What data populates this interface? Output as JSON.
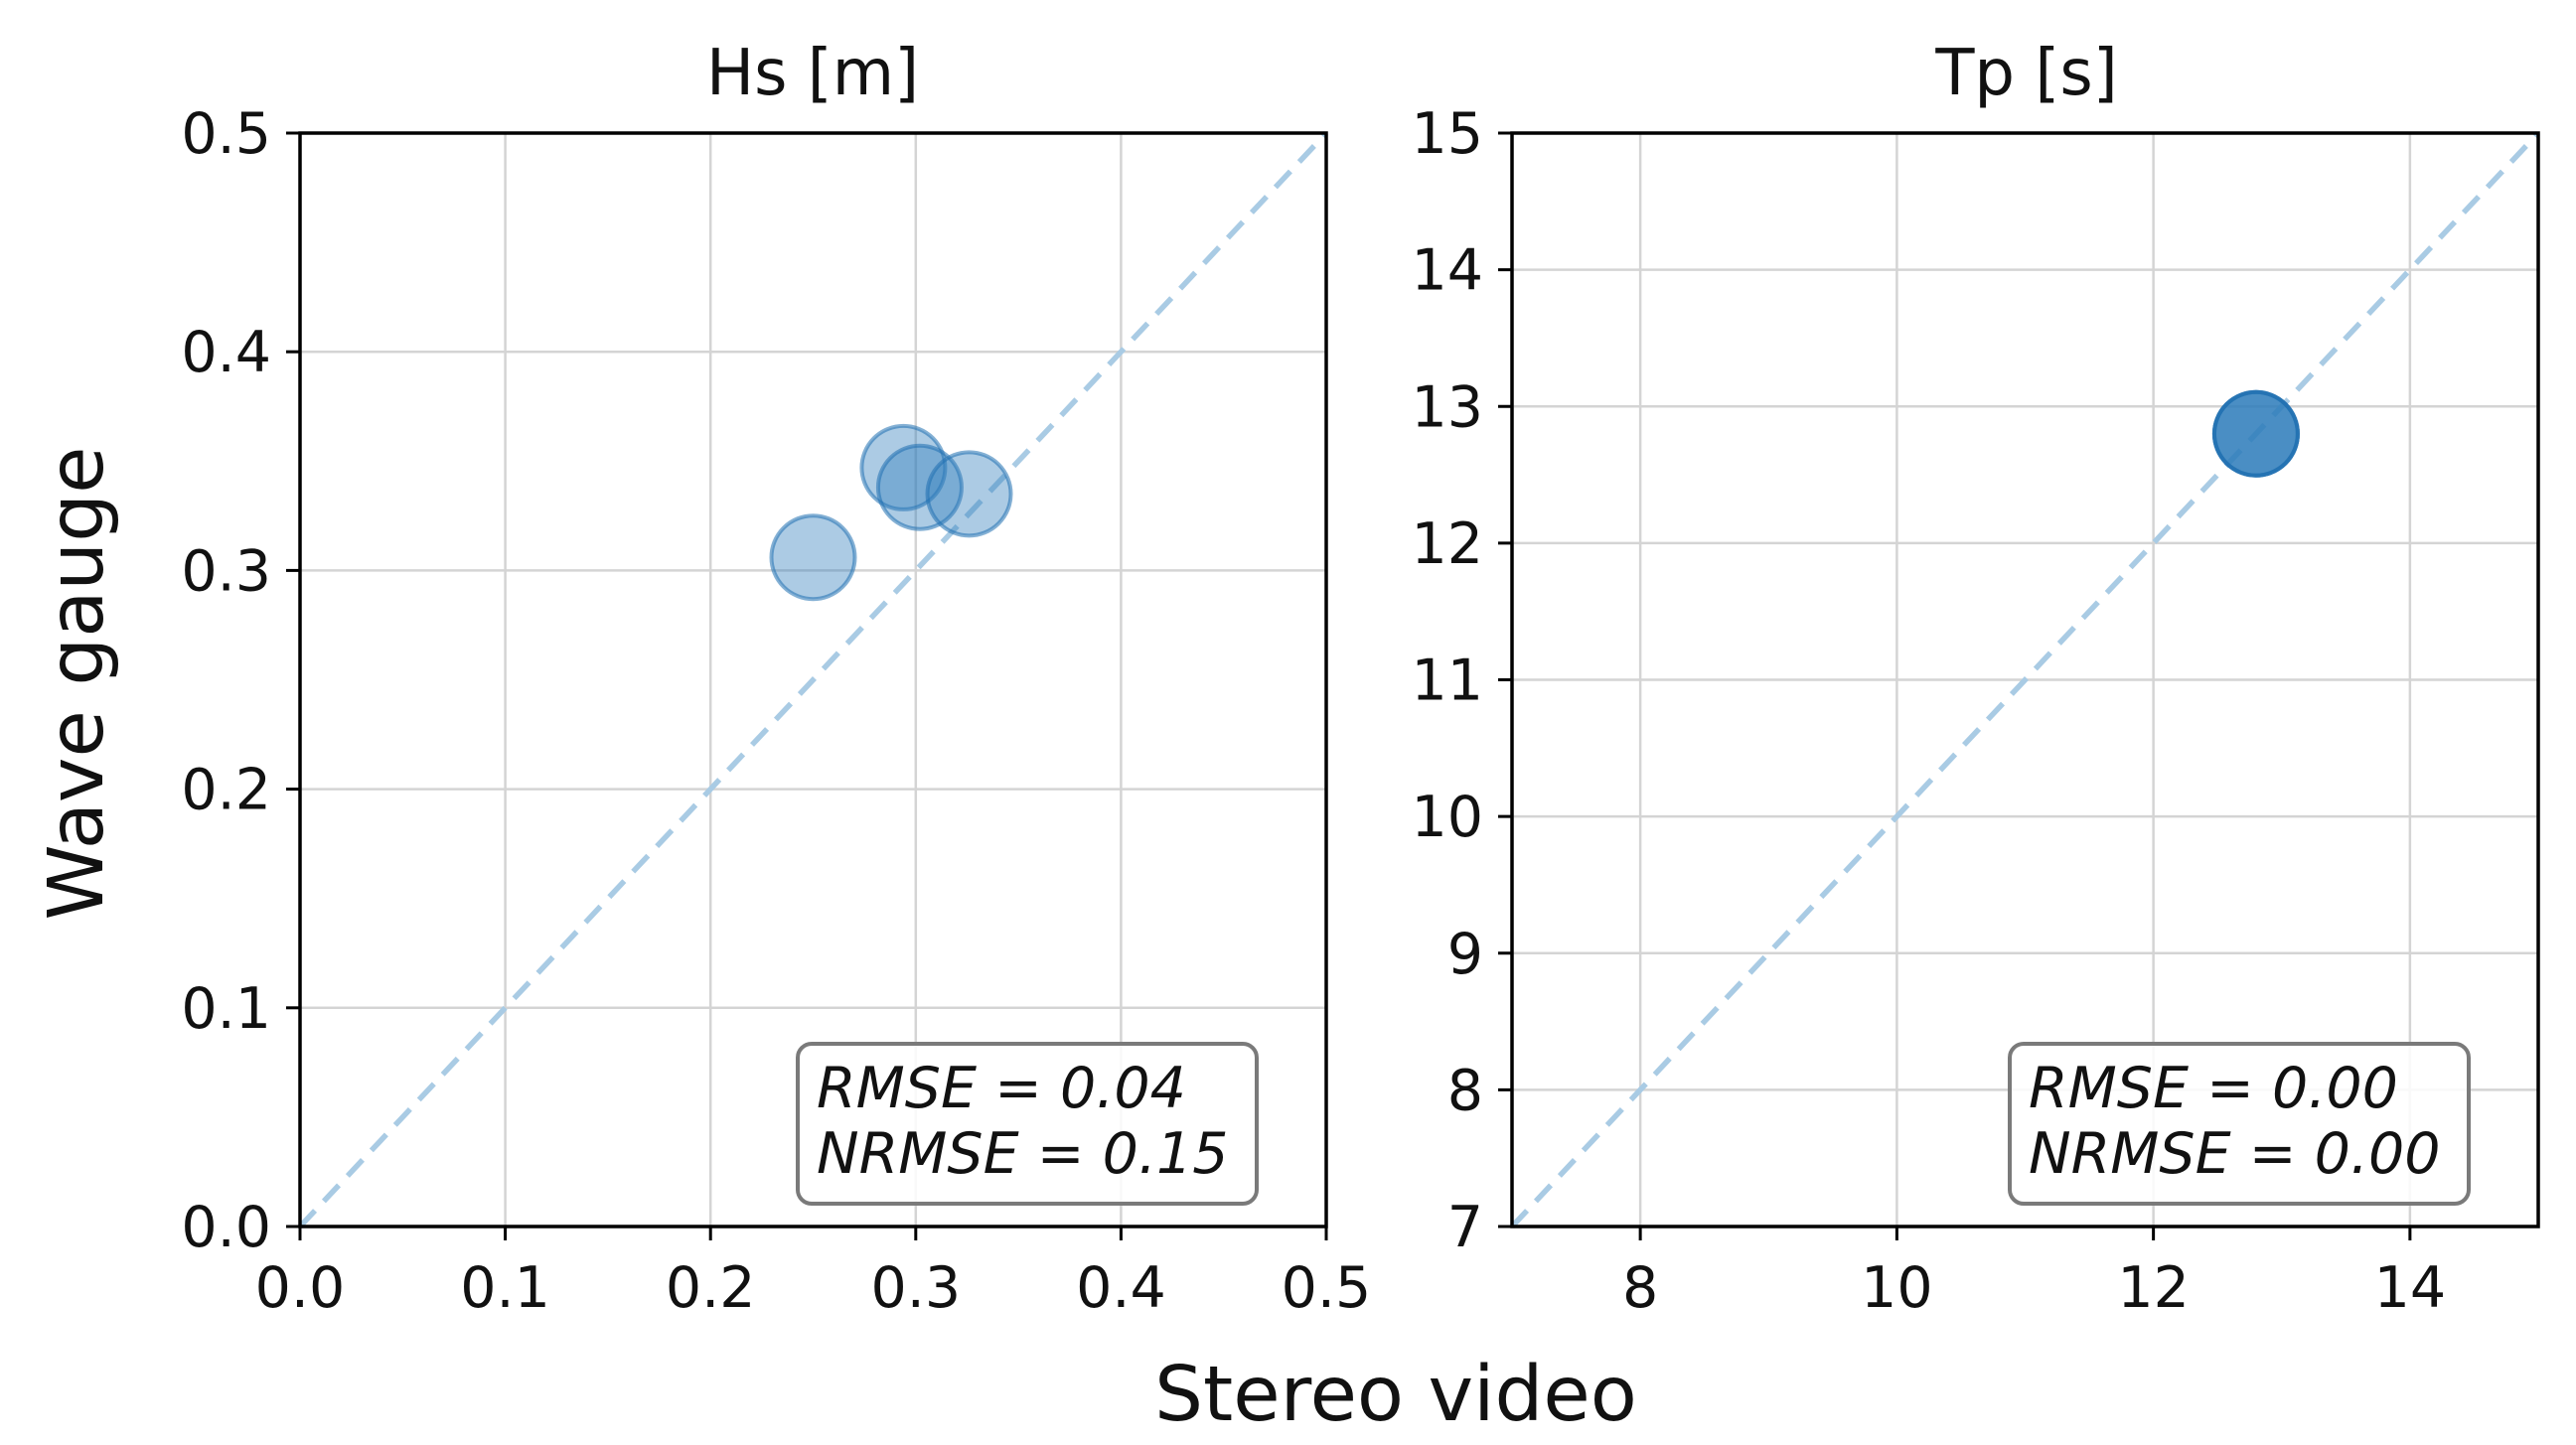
{
  "figure": {
    "xlabel": "Stereo video",
    "ylabel": "Wave gauge"
  },
  "chart_data": [
    {
      "type": "scatter",
      "title": "Hs [m]",
      "xlim": [
        0.0,
        0.5
      ],
      "ylim": [
        0.0,
        0.5
      ],
      "xticks": [
        "0.0",
        "0.1",
        "0.2",
        "0.3",
        "0.4",
        "0.5"
      ],
      "yticks": [
        "0.0",
        "0.1",
        "0.2",
        "0.3",
        "0.4",
        "0.5"
      ],
      "grid": true,
      "reference_line": "1:1 dashed",
      "series": [
        {
          "points": [
            {
              "x": 0.25,
              "y": 0.306
            },
            {
              "x": 0.294,
              "y": 0.347
            },
            {
              "x": 0.302,
              "y": 0.338
            },
            {
              "x": 0.326,
              "y": 0.335
            }
          ]
        }
      ],
      "stats": {
        "rmse_label": "RMSE = 0.04",
        "nrmse_label": "NRMSE = 0.15"
      },
      "legend_position": "bottom-right"
    },
    {
      "type": "scatter",
      "title": "Tp [s]",
      "xlim": [
        7,
        15
      ],
      "ylim": [
        7,
        15
      ],
      "xticks": [
        "8",
        "10",
        "12",
        "14"
      ],
      "yticks": [
        "7",
        "8",
        "9",
        "10",
        "11",
        "12",
        "13",
        "14",
        "15"
      ],
      "grid": true,
      "reference_line": "1:1 dashed",
      "series": [
        {
          "points": [
            {
              "x": 12.8,
              "y": 12.8
            },
            {
              "x": 12.8,
              "y": 12.8
            },
            {
              "x": 12.8,
              "y": 12.8
            },
            {
              "x": 12.8,
              "y": 12.8
            }
          ]
        }
      ],
      "stats": {
        "rmse_label": "RMSE = 0.00",
        "nrmse_label": "NRMSE = 0.00"
      },
      "legend_position": "bottom-right"
    }
  ],
  "colors": {
    "marker": "#2f7ebc",
    "marker_edge": "#1f6fb0",
    "reference_line": "#a9cbe4",
    "grid": "#d4d4d4",
    "axis": "#000000",
    "stat_box_edge": "#7a7a7a"
  }
}
